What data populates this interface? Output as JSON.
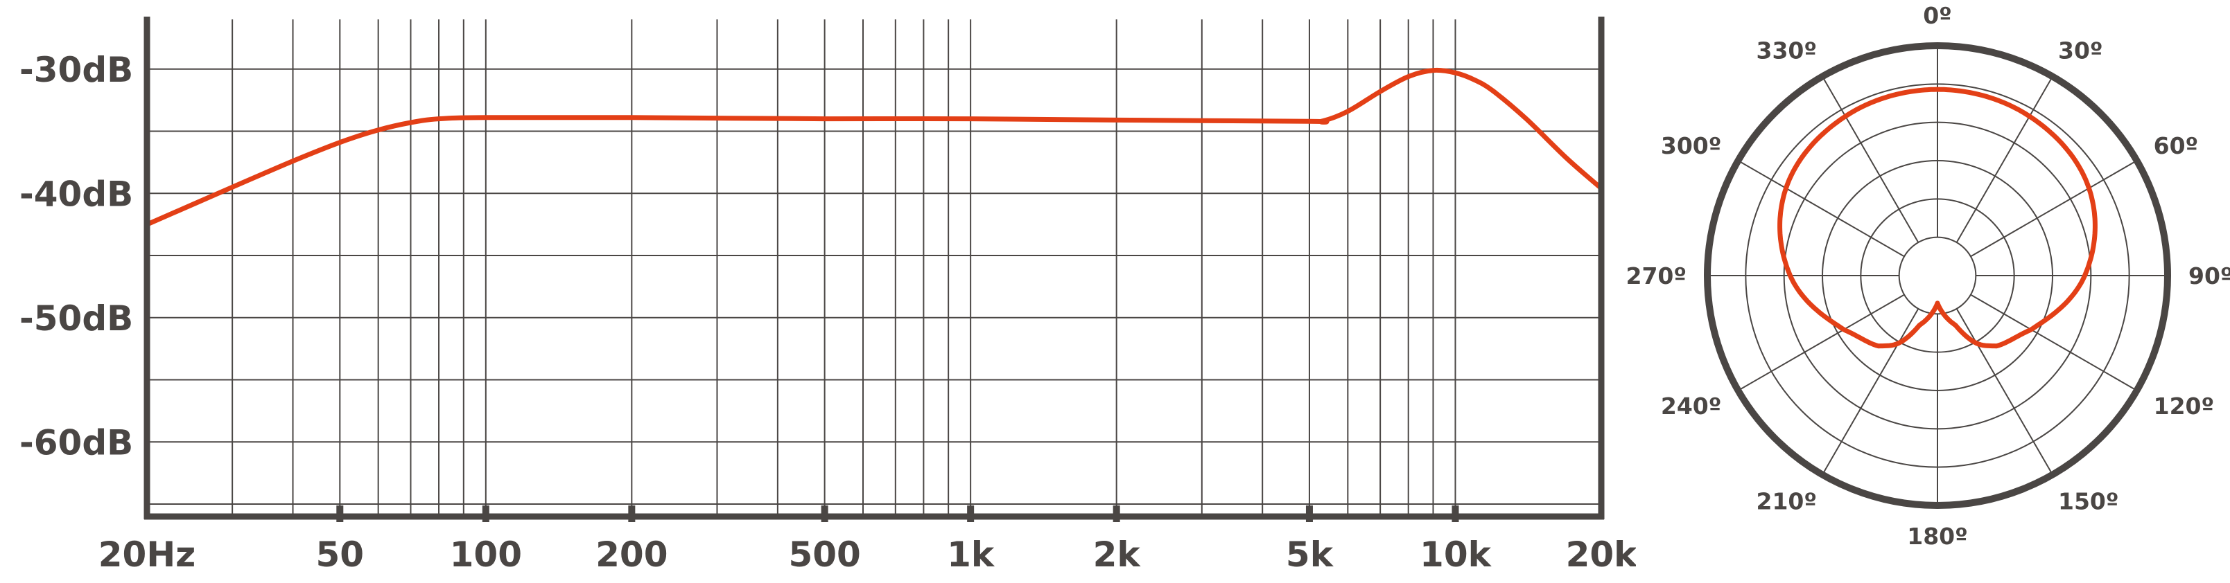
{
  "colors": {
    "frame": "#4a4644",
    "grid": "#4a4644",
    "curve": "#e33f16",
    "text": "#4a4644"
  },
  "chart_data": [
    {
      "type": "line",
      "title": "",
      "xlabel": "",
      "ylabel": "",
      "x_scale": "log",
      "xlim": [
        20,
        20000
      ],
      "ylim": [
        -66,
        -26
      ],
      "grid": true,
      "y_ticks": [
        -30,
        -40,
        -50,
        -60
      ],
      "y_tick_labels": [
        "-30dB",
        "-40dB",
        "-50dB",
        "-60dB"
      ],
      "x_ticks": [
        20,
        50,
        100,
        200,
        500,
        1000,
        2000,
        5000,
        10000,
        20000
      ],
      "x_tick_labels": [
        "20Hz",
        "50",
        "100",
        "200",
        "500",
        "1k",
        "2k",
        "5k",
        "10k",
        "20k"
      ],
      "series": [
        {
          "x": [
            20,
            30,
            40,
            50,
            60,
            70,
            80,
            100,
            200,
            500,
            1000,
            2000,
            5000,
            5300,
            6000,
            7000,
            8000,
            9000,
            10000,
            11000,
            12000,
            14000,
            17000,
            20000
          ],
          "y": [
            -42.5,
            -39.5,
            -37.4,
            -35.9,
            -34.9,
            -34.3,
            -34.0,
            -33.9,
            -33.9,
            -34.0,
            -34.0,
            -34.1,
            -34.2,
            -34.2,
            -33.4,
            -31.8,
            -30.6,
            -30.1,
            -30.3,
            -30.9,
            -31.8,
            -34.0,
            -37.2,
            -39.6
          ]
        }
      ]
    },
    {
      "type": "polar",
      "title": "",
      "angle_labels": [
        "0º",
        "30º",
        "60º",
        "90º",
        "120º",
        "150º",
        "180º",
        "210º",
        "240º",
        "270º",
        "300º",
        "330º"
      ],
      "angle_ticks": [
        0,
        30,
        60,
        90,
        120,
        150,
        180,
        210,
        240,
        270,
        300,
        330
      ],
      "r_rings": 5,
      "series": [
        {
          "angles": [
            0,
            30,
            60,
            90,
            120,
            140,
            150,
            160,
            180,
            200,
            210,
            220,
            240,
            270,
            300,
            330
          ],
          "r": [
            0.81,
            0.8,
            0.76,
            0.64,
            0.47,
            0.4,
            0.34,
            0.23,
            0.12,
            0.23,
            0.34,
            0.4,
            0.47,
            0.64,
            0.76,
            0.8
          ]
        }
      ]
    }
  ]
}
